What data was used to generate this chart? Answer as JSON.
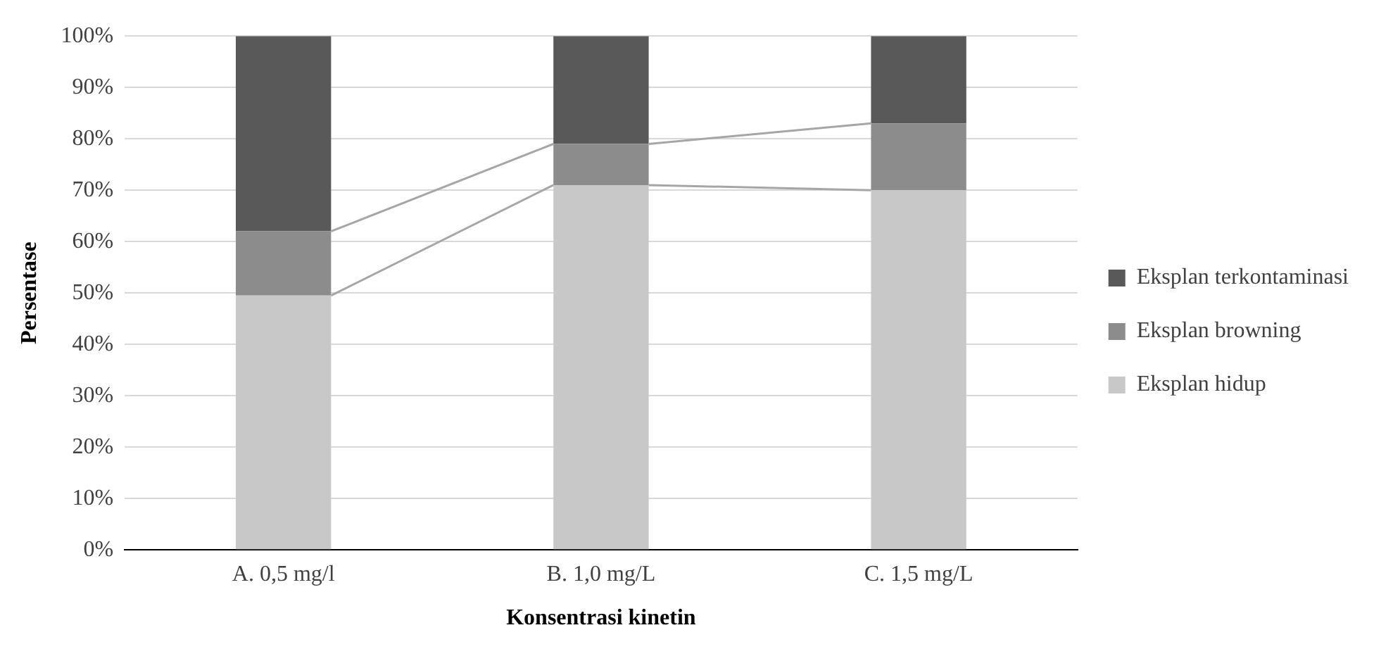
{
  "chart_data": {
    "type": "bar",
    "stacked": true,
    "xlabel": "Konsentrasi kinetin",
    "ylabel": "Persentase",
    "categories": [
      "A. 0,5 mg/l",
      "B. 1,0 mg/L",
      "C. 1,5 mg/L"
    ],
    "series": [
      {
        "name": "Eksplan hidup",
        "color": "#c8c8c8",
        "values": [
          49.5,
          71,
          70
        ]
      },
      {
        "name": "Eksplan browning",
        "color": "#8c8c8c",
        "values": [
          12.5,
          8,
          13
        ]
      },
      {
        "name": "Eksplan terkontaminasi",
        "color": "#595959",
        "values": [
          38,
          21,
          17
        ]
      }
    ],
    "ylim": [
      0,
      100
    ],
    "yticks": [
      {
        "value": 0,
        "label": "0%"
      },
      {
        "value": 10,
        "label": "10%"
      },
      {
        "value": 20,
        "label": "20%"
      },
      {
        "value": 30,
        "label": "30%"
      },
      {
        "value": 40,
        "label": "40%"
      },
      {
        "value": 50,
        "label": "50%"
      },
      {
        "value": 60,
        "label": "60%"
      },
      {
        "value": 70,
        "label": "70%"
      },
      {
        "value": 80,
        "label": "80%"
      },
      {
        "value": 90,
        "label": "90%"
      },
      {
        "value": 100,
        "label": "100%"
      }
    ],
    "grid": "y",
    "legend": "right"
  }
}
